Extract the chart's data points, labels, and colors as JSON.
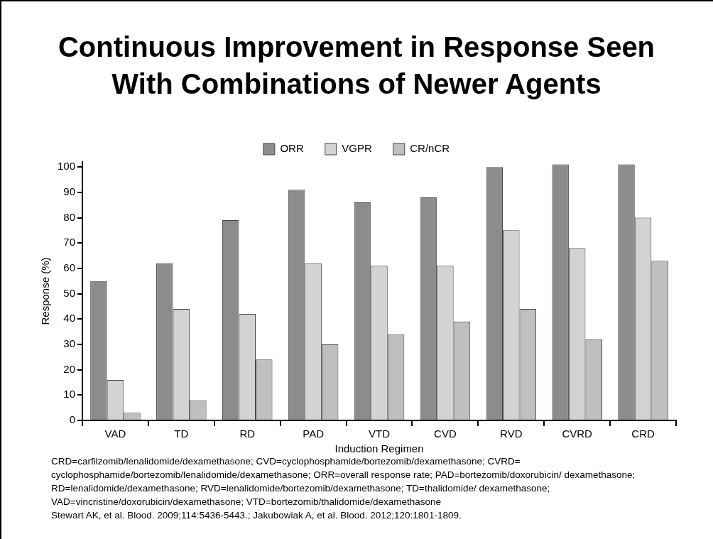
{
  "chart_data": {
    "type": "bar",
    "title": "Continuous Improvement in Response Seen With Combinations of Newer Agents",
    "xlabel": "Induction Regimen",
    "ylabel": "Response (%)",
    "categories": [
      "VAD",
      "TD",
      "RD",
      "PAD",
      "VTD",
      "CVD",
      "RVD",
      "CVRD",
      "CRD"
    ],
    "series": [
      {
        "name": "ORR",
        "color": "#8c8c8c",
        "values": [
          55,
          62,
          79,
          91,
          86,
          88,
          100,
          101,
          101
        ]
      },
      {
        "name": "VGPR",
        "color": "#d3d3d3",
        "values": [
          16,
          44,
          42,
          62,
          61,
          61,
          75,
          68,
          80
        ]
      },
      {
        "name": "CR/nCR",
        "color": "#bfbfbf",
        "values": [
          3,
          8,
          24,
          30,
          34,
          39,
          44,
          32,
          63
        ]
      }
    ],
    "ylim": [
      0,
      102
    ],
    "yticks": [
      0,
      10,
      20,
      30,
      40,
      50,
      60,
      70,
      80,
      90,
      100
    ],
    "grid": false,
    "legend": "top",
    "annotations": [
      "CRD=carfilzomib/lenalidomide/dexamethasone; CVD=cyclophosphamide/bortezomib/dexamethasone; CVRD= cyclophosphamide/bortezomib/lenalidomide/dexamethasone; ORR=overall response rate; PAD=bortezomib/doxorubicin/ dexamethasone; RD=lenalidomide/dexamethasone; RVD=lenalidomide/bortezomib/dexamethasone; TD=thalidomide/ dexamethasone; VAD=vincristine/doxorubicin/dexamethasone; VTD=bortezomib/thalidomide/dexamethasone",
      "Stewart AK, et al. Blood. 2009;114:5436-5443.; Jakubowiak A, et al. Blood. 2012;120:1801-1809."
    ]
  }
}
